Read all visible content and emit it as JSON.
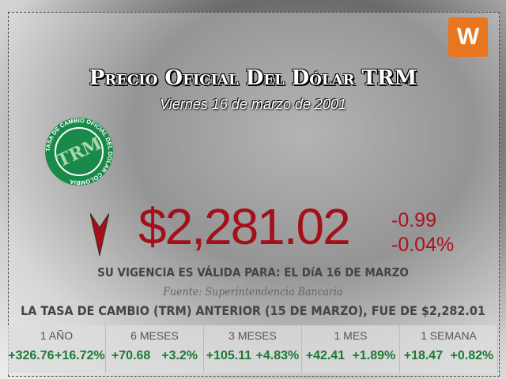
{
  "title": "Precio Oficial Del Dólar TRM",
  "date": "Viernes 16 de marzo de 2001",
  "logo": "W",
  "seal": {
    "center": "TRM",
    "ring": "TASA DE CAMBIO OFICIAL DEL DOLAR COLOMBIA",
    "color": "#1a8a4a"
  },
  "price": "$2,281.02",
  "change_abs": "-0.99",
  "change_pct": "-0.04%",
  "trend": "down",
  "validity": "SU VIGENCIA ES VÁLIDA PARA: EL DíA 16 DE MARZO",
  "source": "Fuente: Superintendencia Bancaria",
  "previous": "LA TASA DE CAMBIO (TRM) ANTERIOR (15 DE MARZO), FUE DE $2,282.01",
  "stats": [
    {
      "label": "1 AÑO",
      "abs": "+326.76",
      "pct": "+16.72%"
    },
    {
      "label": "6 MESES",
      "abs": "+70.68",
      "pct": "+3.2%"
    },
    {
      "label": "3 MESES",
      "abs": "+105.11",
      "pct": "+4.83%"
    },
    {
      "label": "1 MES",
      "abs": "+42.41",
      "pct": "+1.89%"
    },
    {
      "label": "1 SEMANA",
      "abs": "+18.47",
      "pct": "+0.82%"
    }
  ]
}
